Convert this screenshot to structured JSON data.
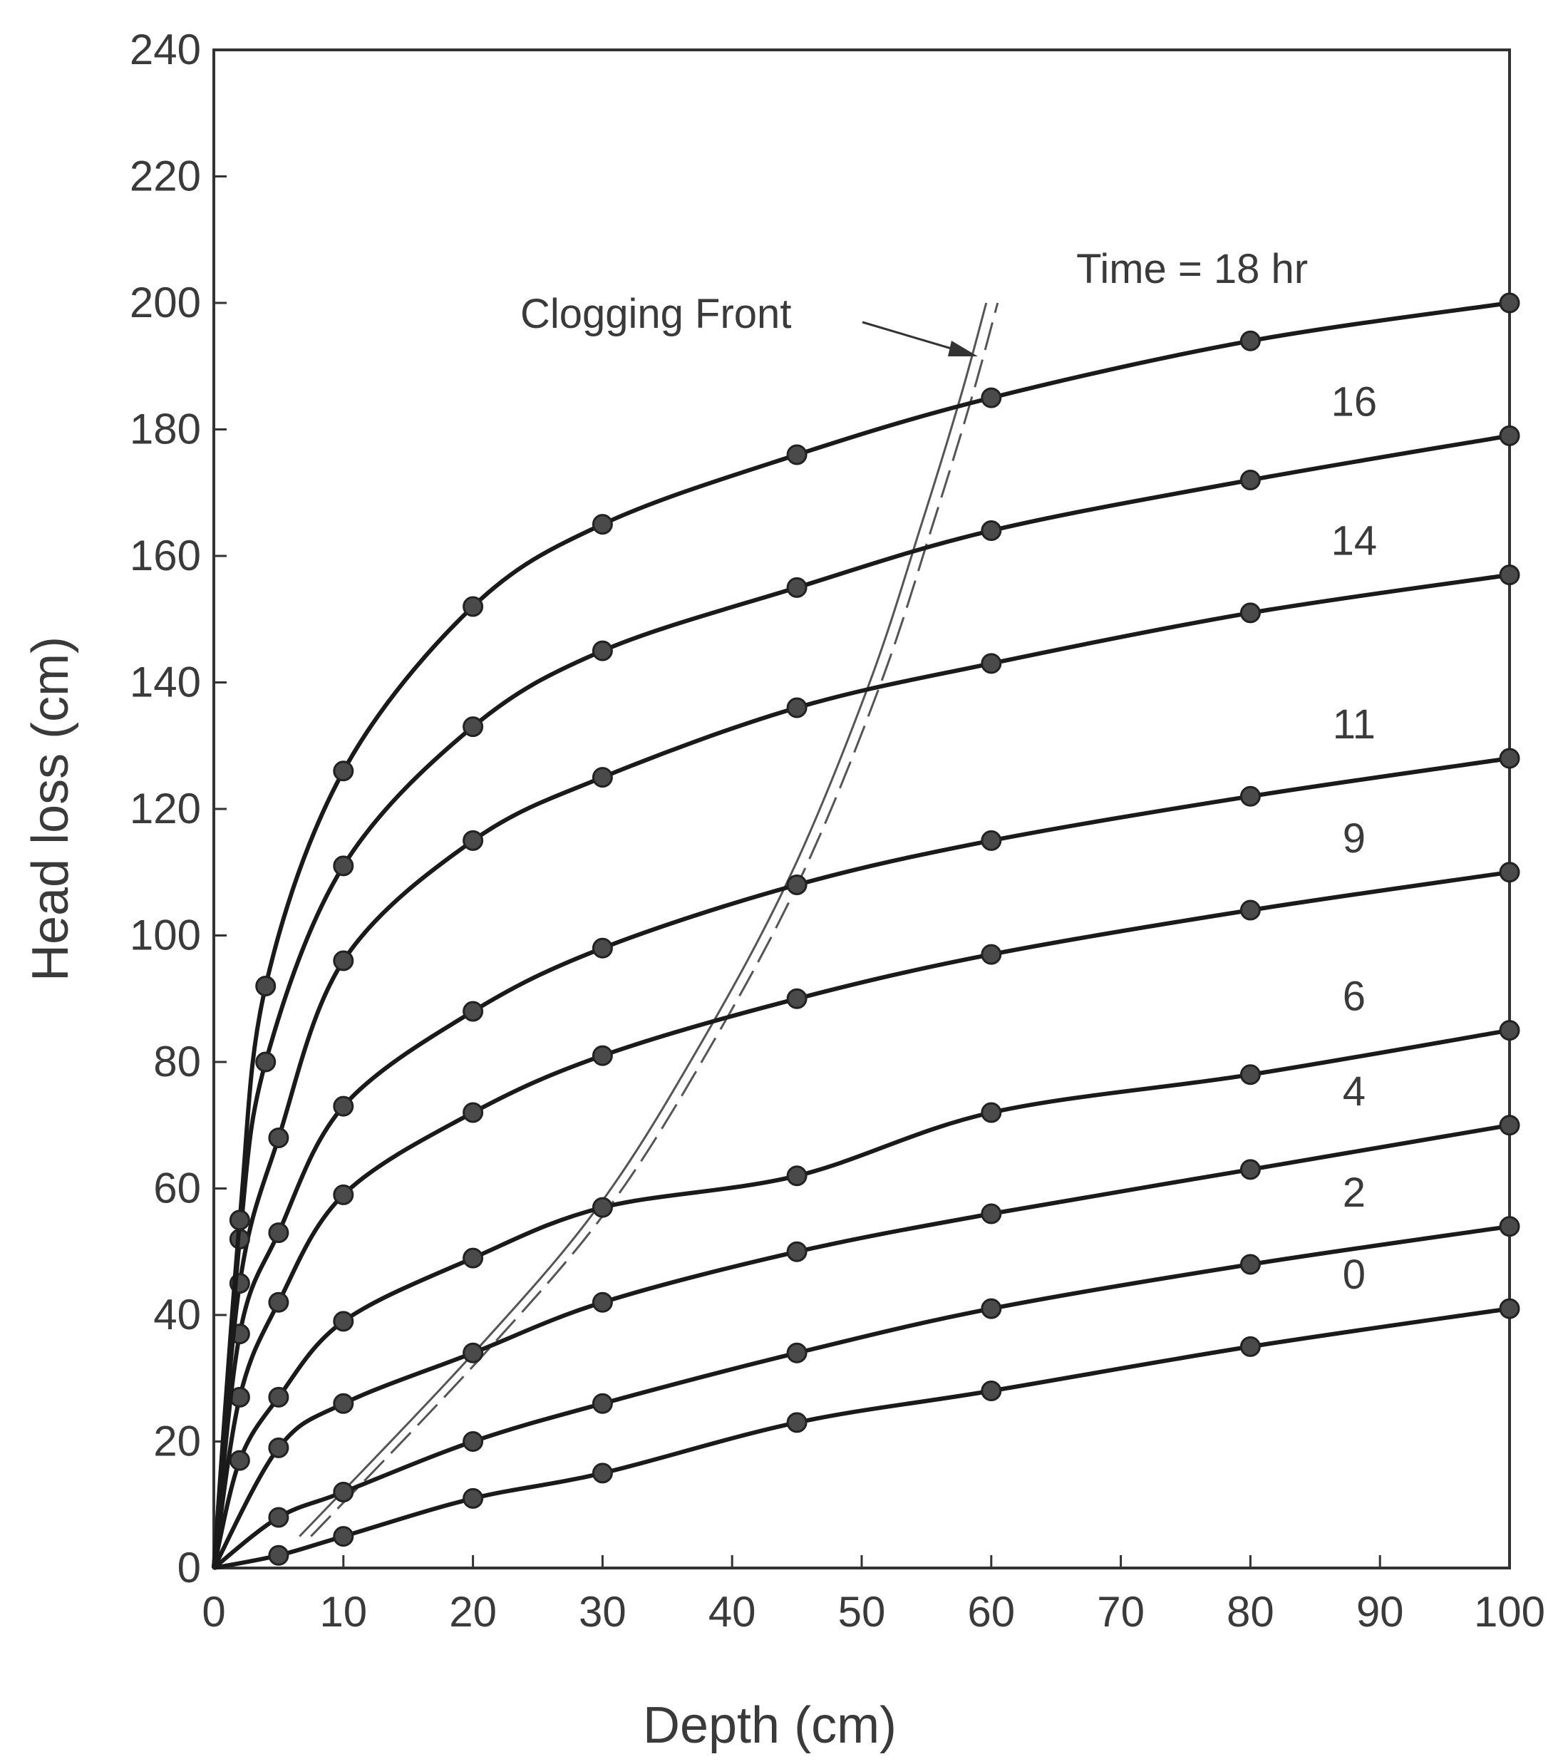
{
  "chart_data": {
    "type": "line",
    "xlabel": "Depth (cm)",
    "ylabel": "Head loss (cm)",
    "xlim": [
      0,
      100
    ],
    "ylim": [
      0,
      240
    ],
    "xticks": [
      0,
      10,
      20,
      30,
      40,
      50,
      60,
      70,
      80,
      90,
      100
    ],
    "yticks": [
      0,
      20,
      40,
      60,
      80,
      100,
      120,
      140,
      160,
      180,
      200,
      220,
      240
    ],
    "grid": false,
    "legend": "none",
    "annotation": "Clogging Front",
    "series_label_prefix": "Time = ",
    "series_label_suffix": " hr",
    "series": [
      {
        "label": "0",
        "points": [
          [
            0,
            0
          ],
          [
            5,
            2
          ],
          [
            10,
            5
          ],
          [
            20,
            11
          ],
          [
            30,
            15
          ],
          [
            45,
            23
          ],
          [
            60,
            28
          ],
          [
            80,
            35
          ],
          [
            100,
            41
          ]
        ]
      },
      {
        "label": "2",
        "points": [
          [
            0,
            0
          ],
          [
            5,
            8
          ],
          [
            10,
            12
          ],
          [
            20,
            20
          ],
          [
            30,
            26
          ],
          [
            45,
            34
          ],
          [
            60,
            41
          ],
          [
            80,
            48
          ],
          [
            100,
            54
          ]
        ]
      },
      {
        "label": "4",
        "points": [
          [
            0,
            0
          ],
          [
            5,
            19
          ],
          [
            10,
            26
          ],
          [
            20,
            34
          ],
          [
            30,
            42
          ],
          [
            45,
            50
          ],
          [
            60,
            56
          ],
          [
            80,
            63
          ],
          [
            100,
            70
          ]
        ]
      },
      {
        "label": "6",
        "points": [
          [
            0,
            0
          ],
          [
            2,
            17
          ],
          [
            5,
            27
          ],
          [
            10,
            39
          ],
          [
            20,
            49
          ],
          [
            30,
            57
          ],
          [
            45,
            62
          ],
          [
            60,
            72
          ],
          [
            80,
            78
          ],
          [
            100,
            85
          ]
        ]
      },
      {
        "label": "9",
        "points": [
          [
            0,
            0
          ],
          [
            2,
            27
          ],
          [
            5,
            42
          ],
          [
            10,
            59
          ],
          [
            20,
            72
          ],
          [
            30,
            81
          ],
          [
            45,
            90
          ],
          [
            60,
            97
          ],
          [
            80,
            104
          ],
          [
            100,
            110
          ]
        ]
      },
      {
        "label": "11",
        "points": [
          [
            0,
            0
          ],
          [
            2,
            37
          ],
          [
            5,
            53
          ],
          [
            10,
            73
          ],
          [
            20,
            88
          ],
          [
            30,
            98
          ],
          [
            45,
            108
          ],
          [
            60,
            115
          ],
          [
            80,
            122
          ],
          [
            100,
            128
          ]
        ]
      },
      {
        "label": "14",
        "points": [
          [
            0,
            0
          ],
          [
            2,
            45
          ],
          [
            5,
            68
          ],
          [
            10,
            96
          ],
          [
            20,
            115
          ],
          [
            30,
            125
          ],
          [
            45,
            136
          ],
          [
            60,
            143
          ],
          [
            80,
            151
          ],
          [
            100,
            157
          ]
        ]
      },
      {
        "label": "16",
        "points": [
          [
            0,
            0
          ],
          [
            2,
            52
          ],
          [
            4,
            80
          ],
          [
            10,
            111
          ],
          [
            20,
            133
          ],
          [
            30,
            145
          ],
          [
            45,
            155
          ],
          [
            60,
            164
          ],
          [
            80,
            172
          ],
          [
            100,
            179
          ]
        ]
      },
      {
        "label": "18",
        "points": [
          [
            0,
            0
          ],
          [
            2,
            55
          ],
          [
            4,
            92
          ],
          [
            10,
            126
          ],
          [
            20,
            152
          ],
          [
            30,
            165
          ],
          [
            45,
            176
          ],
          [
            60,
            185
          ],
          [
            80,
            194
          ],
          [
            100,
            200
          ]
        ]
      }
    ],
    "clogging_front": [
      [
        7,
        5
      ],
      [
        20,
        33
      ],
      [
        30,
        57
      ],
      [
        38,
        83
      ],
      [
        45,
        110
      ],
      [
        51,
        140
      ],
      [
        55,
        165
      ],
      [
        58,
        185
      ],
      [
        60,
        200
      ]
    ]
  }
}
